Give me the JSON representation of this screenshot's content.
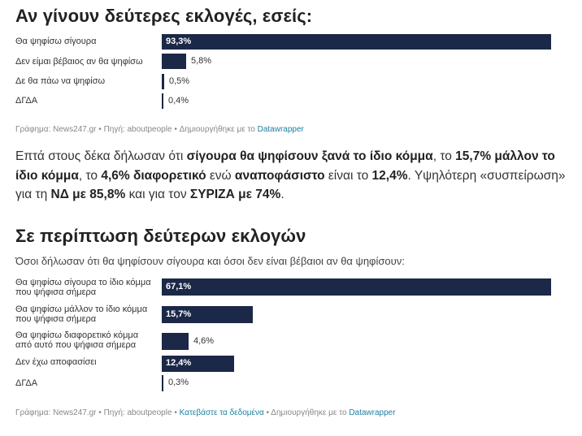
{
  "section1": {
    "title": "Αν γίνουν δεύτερες εκλογές, εσείς:",
    "footer": {
      "chart_by": "Γράφημα: News247.gr",
      "source": "Πηγή: aboutpeople",
      "created_with": "Δημιουργήθηκε με το",
      "tool": "Datawrapper",
      "separator": "•"
    }
  },
  "paragraph": {
    "p1": "Επτά στους δέκα δήλωσαν ότι ",
    "b1": "σίγουρα θα ψηφίσουν ξανά το ίδιο κόμμα",
    "p2": ", το ",
    "b2": "15,7% μάλλον το ίδιο κόμμα",
    "p3": ", το ",
    "b3": "4,6% διαφορετικό",
    "p4": " ενώ ",
    "b4": "αναποφάσιστο",
    "p5": " είναι το ",
    "b5": "12,4%",
    "p6": ". Υψηλότερη «συσπείρωση» για τη ",
    "b6": "ΝΔ με 85,8%",
    "p7": " και για τον ",
    "b7": "ΣΥΡΙΖΑ με 74%",
    "p8": "."
  },
  "section2": {
    "title": "Σε περίπτωση δεύτερων εκλογών",
    "subtitle": "Όσοι δήλωσαν ότι θα ψηφίσουν σίγουρα και όσοι δεν είναι βέβαιοι αν θα ψηφίσουν:",
    "footer": {
      "chart_by": "Γράφημα: News247.gr",
      "source": "Πηγή: aboutpeople",
      "download": "Κατεβάστε τα δεδομένα",
      "created_with": "Δημιουργήθηκε με το",
      "tool": "Datawrapper",
      "separator": "•"
    }
  },
  "colors": {
    "bar": "#1b2847",
    "link": "#1d81a2"
  },
  "chart_data": [
    {
      "type": "bar",
      "orientation": "horizontal",
      "title": "Αν γίνουν δεύτερες εκλογές, εσείς:",
      "categories": [
        "Θα ψηφίσω σίγουρα",
        "Δεν είμαι βέβαιος αν θα ψηφίσω",
        "Δε θα πάω να ψηφίσω",
        "ΔΓΔΑ"
      ],
      "values": [
        93.3,
        5.8,
        0.5,
        0.4
      ],
      "value_labels": [
        "93,3%",
        "5,8%",
        "0,5%",
        "0,4%"
      ],
      "xlim": [
        0,
        93.3
      ]
    },
    {
      "type": "bar",
      "orientation": "horizontal",
      "title": "Σε περίπτωση δεύτερων εκλογών",
      "subtitle": "Όσοι δήλωσαν ότι θα ψηφίσουν σίγουρα και όσοι δεν είναι βέβαιοι αν θα ψηφίσουν:",
      "categories": [
        "Θα ψηφίσω σίγουρα το ίδιο κόμμα που ψήφισα σήμερα",
        "Θα ψηφίσω μάλλον το ίδιο κόμμα που ψήφισα σήμερα",
        "Θα ψηφίσω διαφορετικό κόμμα από αυτό που ψήφισα σήμερα",
        "Δεν έχω αποφασίσει",
        "ΔΓΔΑ"
      ],
      "values": [
        67.1,
        15.7,
        4.6,
        12.4,
        0.3
      ],
      "value_labels": [
        "67,1%",
        "15,7%",
        "4,6%",
        "12,4%",
        "0,3%"
      ],
      "xlim": [
        0,
        67.1
      ]
    }
  ]
}
